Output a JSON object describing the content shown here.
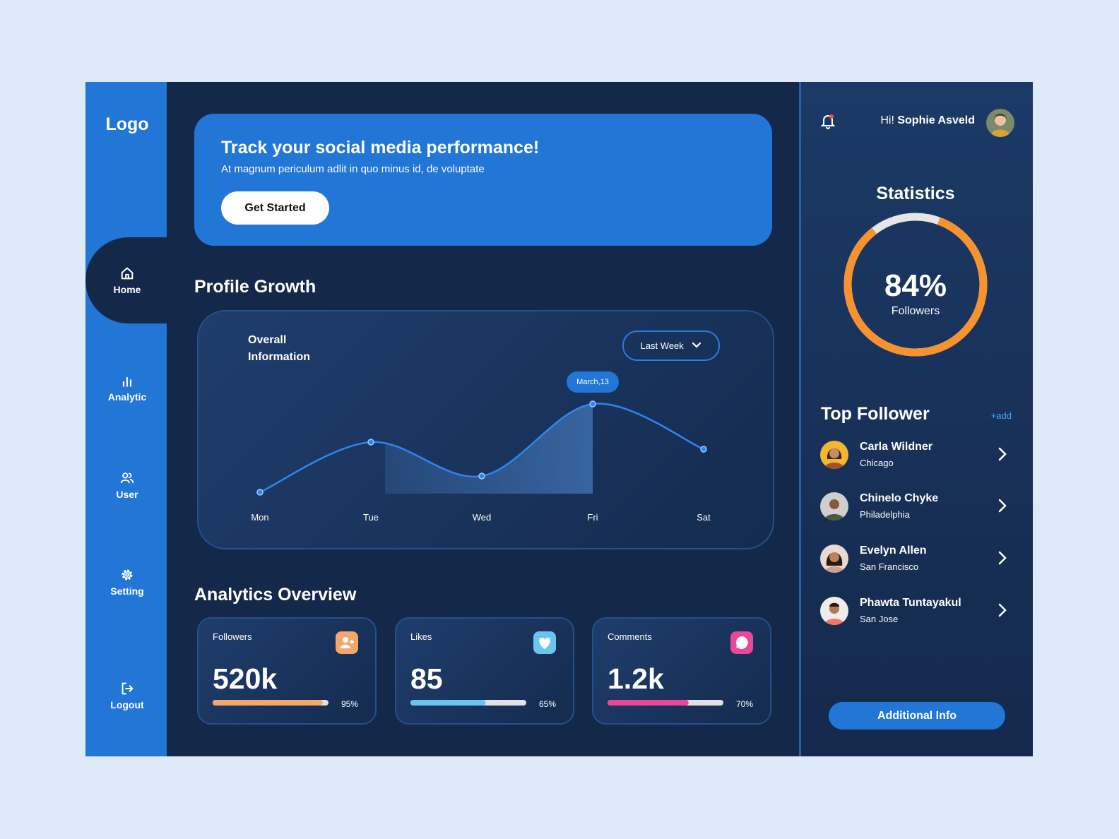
{
  "sidebar": {
    "logo": "Logo",
    "nav": [
      "Home",
      "Analytic",
      "User",
      "Setting",
      "Logout"
    ]
  },
  "banner": {
    "title": "Track your social media performance!",
    "subtitle": "At magnum periculum adlit in quo minus id, de voluptate",
    "button": "Get Started"
  },
  "profile_growth": {
    "heading": "Profile Growth",
    "card_title": "Overall Information",
    "filter": "Last Week",
    "chart": {
      "type": "line",
      "categories": [
        "Mon",
        "Tue",
        "Wed",
        "Fri",
        "Sat"
      ],
      "values": [
        2,
        73,
        25,
        127,
        63
      ],
      "ylim": [
        0,
        140
      ],
      "color": "#2f86f0",
      "annotations": [
        {
          "category": "Fri",
          "text": "March,13"
        }
      ]
    }
  },
  "analytics": {
    "heading": "Analytics Overview",
    "cards": [
      {
        "label": "Followers",
        "value": "520k",
        "progress": 95,
        "progress_label": "95%",
        "color": "#f5a66b"
      },
      {
        "label": "Likes",
        "value": "85",
        "progress": 65,
        "progress_label": "65%",
        "color": "#6cc4f0"
      },
      {
        "label": "Comments",
        "value": "1.2k",
        "progress": 70,
        "progress_label": "70%",
        "color": "#e8479a"
      }
    ]
  },
  "user": {
    "greeting": "Hi!",
    "name": "Sophie Asveld"
  },
  "statistics": {
    "title": "Statistics",
    "percent": 84,
    "percent_label": "84%",
    "caption": "Followers",
    "color": "#f7922e"
  },
  "top_follower": {
    "title": "Top Follower",
    "add": "+add",
    "people": [
      {
        "name": "Carla Wildner",
        "city": "Chicago"
      },
      {
        "name": "Chinelo Chyke",
        "city": "Philadelphia"
      },
      {
        "name": "Evelyn Allen",
        "city": "San Francisco"
      },
      {
        "name": "Phawta Tuntayakul",
        "city": "San Jose"
      }
    ]
  },
  "additional_button": "Additional Info"
}
